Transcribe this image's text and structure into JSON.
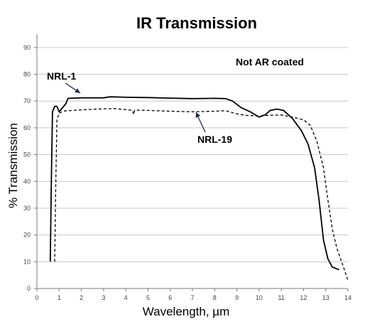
{
  "chart_data": {
    "type": "line",
    "title": "IR Transmission",
    "xlabel": "Wavelength, µm",
    "ylabel": "% Transmission",
    "xlim": [
      0,
      14
    ],
    "ylim": [
      0,
      95
    ],
    "xticks": [
      0,
      1,
      2,
      3,
      4,
      5,
      6,
      7,
      8,
      9,
      10,
      11,
      12,
      13,
      14
    ],
    "yticks": [
      0,
      10,
      20,
      30,
      40,
      50,
      60,
      70,
      80,
      90
    ],
    "grid": "horizontal",
    "annotations": [
      {
        "text": "Not AR coated"
      },
      {
        "text": "NRL-1"
      },
      {
        "text": "NRL-19"
      }
    ],
    "series": [
      {
        "name": "NRL-1",
        "style": "solid",
        "color": "#000000",
        "points": [
          [
            0.6,
            10
          ],
          [
            0.65,
            40
          ],
          [
            0.7,
            66
          ],
          [
            0.8,
            68
          ],
          [
            0.9,
            68
          ],
          [
            1.0,
            66
          ],
          [
            1.1,
            67
          ],
          [
            1.3,
            69
          ],
          [
            1.4,
            71
          ],
          [
            2,
            71.2
          ],
          [
            3,
            71.2
          ],
          [
            3.3,
            71.6
          ],
          [
            4,
            71.4
          ],
          [
            5,
            71.3
          ],
          [
            6,
            71.1
          ],
          [
            7,
            70.9
          ],
          [
            8,
            71
          ],
          [
            8.5,
            70.9
          ],
          [
            8.8,
            70
          ],
          [
            9.2,
            67.5
          ],
          [
            9.6,
            66
          ],
          [
            10,
            64
          ],
          [
            10.3,
            65
          ],
          [
            10.5,
            66.5
          ],
          [
            10.8,
            67
          ],
          [
            11.1,
            66.5
          ],
          [
            11.5,
            63.5
          ],
          [
            11.9,
            59
          ],
          [
            12.2,
            54
          ],
          [
            12.5,
            45
          ],
          [
            12.7,
            33
          ],
          [
            12.9,
            18
          ],
          [
            13.1,
            11
          ],
          [
            13.3,
            8
          ],
          [
            13.6,
            7
          ]
        ]
      },
      {
        "name": "NRL-19",
        "style": "dashed",
        "color": "#000000",
        "points": [
          [
            0.8,
            10
          ],
          [
            0.85,
            40
          ],
          [
            0.9,
            63
          ],
          [
            1.0,
            65.5
          ],
          [
            1.2,
            66.3
          ],
          [
            2,
            66.7
          ],
          [
            3,
            67.1
          ],
          [
            3.5,
            67.2
          ],
          [
            4,
            66.8
          ],
          [
            4.3,
            66.5
          ],
          [
            4.35,
            65
          ],
          [
            4.4,
            66.6
          ],
          [
            5,
            66.5
          ],
          [
            6,
            66.2
          ],
          [
            7,
            66
          ],
          [
            8,
            66.2
          ],
          [
            8.5,
            66.4
          ],
          [
            9,
            65.2
          ],
          [
            9.5,
            64.6
          ],
          [
            10,
            64.4
          ],
          [
            10.5,
            64.7
          ],
          [
            11,
            64.8
          ],
          [
            11.5,
            64
          ],
          [
            12,
            63
          ],
          [
            12.3,
            61
          ],
          [
            12.6,
            55
          ],
          [
            12.9,
            45
          ],
          [
            13.1,
            33
          ],
          [
            13.3,
            22
          ],
          [
            13.5,
            15
          ],
          [
            13.8,
            8
          ],
          [
            14,
            3
          ]
        ]
      }
    ]
  }
}
